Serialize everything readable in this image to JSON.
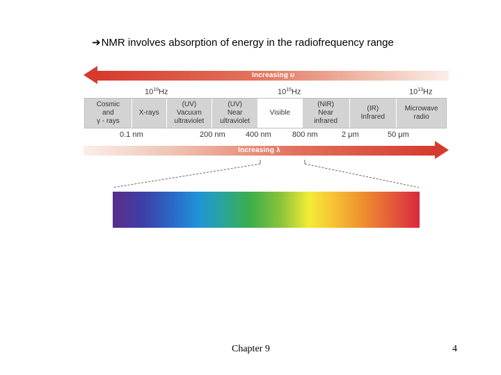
{
  "heading": {
    "arrow_glyph": "➔",
    "text": "NMR involves absorption of energy in the radiofrequency range"
  },
  "top_arrow": {
    "label": "Increasing υ"
  },
  "frequency_labels": [
    {
      "base": "10",
      "exp": "19",
      "unit": "Hz"
    },
    {
      "base": "10",
      "exp": "15",
      "unit": "Hz"
    },
    {
      "base": "10",
      "exp": "13",
      "unit": "Hz"
    }
  ],
  "regions": [
    {
      "label": "Cosmic\nand\nγ - rays"
    },
    {
      "label": "X-rays"
    },
    {
      "label": "(UV)\nVacuum\nultraviolet"
    },
    {
      "label": "(UV)\nNear\nultraviolet"
    },
    {
      "label": "Visible"
    },
    {
      "label": "(NIR)\nNear\ninfrared"
    },
    {
      "label": "(IR)\nInfrared"
    },
    {
      "label": "Microwave\nradio"
    }
  ],
  "wavelength_labels": [
    "0.1 nm",
    "200 nm",
    "400 nm",
    "800 nm",
    "2 μm",
    "50 μm"
  ],
  "bottom_arrow": {
    "label": "Increasing λ"
  },
  "footer": {
    "center": "Chapter 9",
    "page": "4"
  }
}
